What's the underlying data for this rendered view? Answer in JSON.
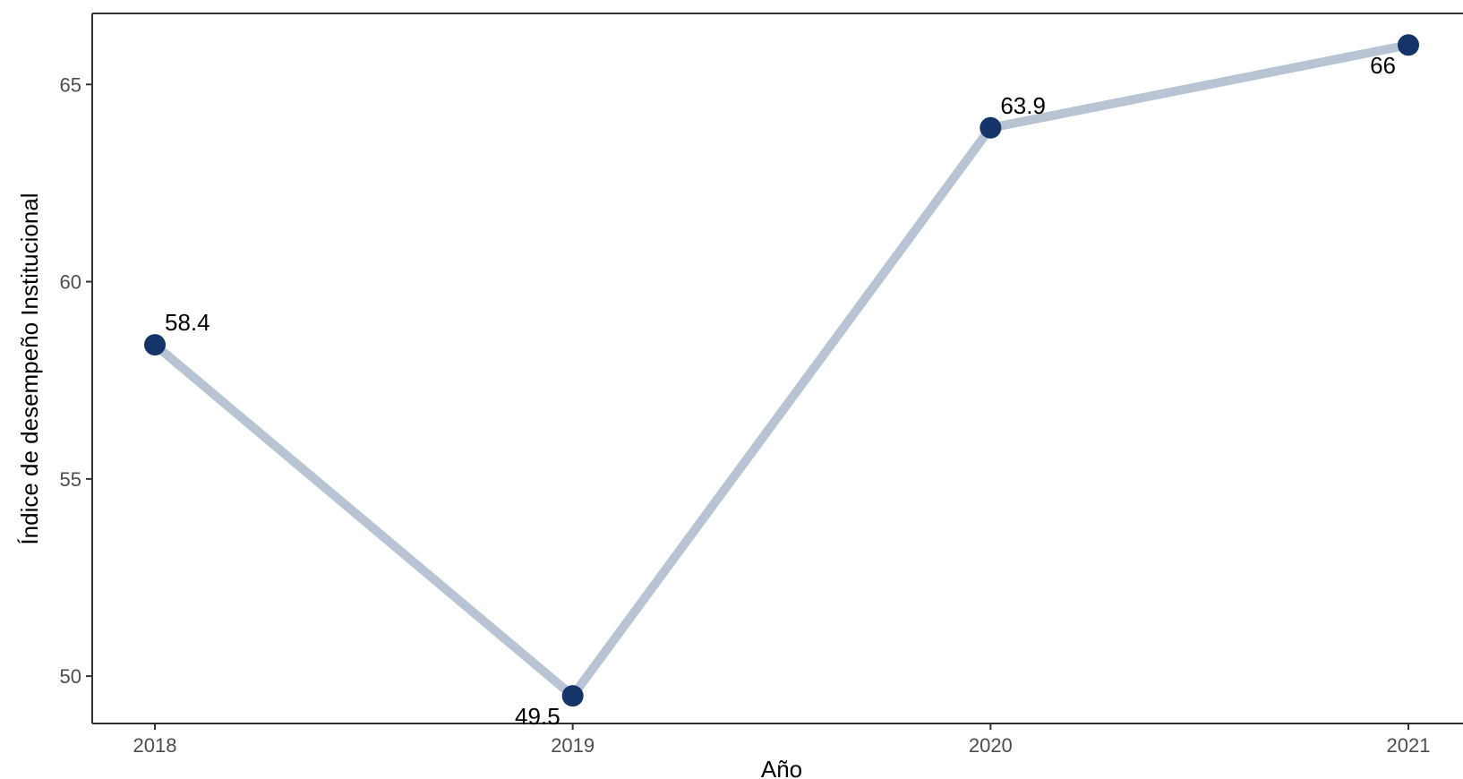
{
  "chart_data": {
    "type": "line",
    "title": "",
    "xlabel": "Año",
    "ylabel": "Índice de desempeño Institucional",
    "x": [
      "2018",
      "2019",
      "2020",
      "2021"
    ],
    "values": [
      58.4,
      49.5,
      63.9,
      66
    ],
    "point_labels": [
      "58.4",
      "49.5",
      "63.9",
      "66"
    ],
    "label_positions": [
      "above-right",
      "below-left",
      "above-right",
      "below-left"
    ],
    "yticks": [
      "50",
      "55",
      "60",
      "65"
    ],
    "ylim": [
      48.8,
      66.8
    ],
    "grid": false,
    "legend": "none",
    "colors": {
      "line": "#b8c3d3",
      "point": "#14346a",
      "axis": "#333333",
      "tick_text": "#4d4d4d"
    }
  }
}
